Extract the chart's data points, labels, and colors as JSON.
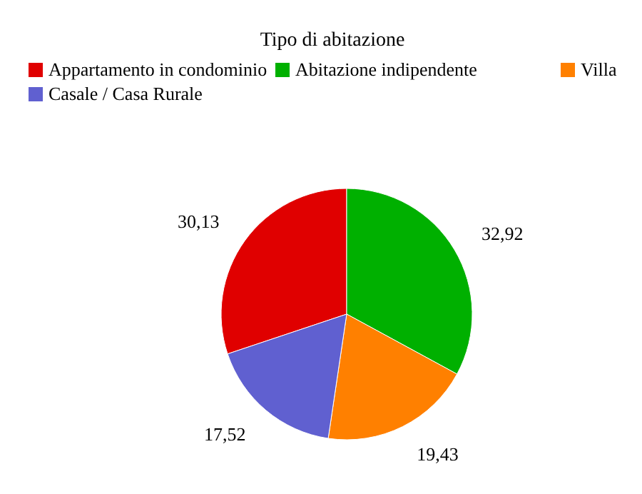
{
  "chart_data": {
    "type": "pie",
    "title": "Tipo di abitazione",
    "categories": [
      "Appartamento in condominio",
      "Abitazione indipendente",
      "Villa",
      "Casale / Casa Rurale"
    ],
    "values": [
      30.13,
      32.92,
      19.43,
      17.52
    ],
    "colors": [
      "#e00000",
      "#00b000",
      "#ff8000",
      "#6060d0"
    ],
    "value_labels": [
      "30,13",
      "32,92",
      "19,43",
      "17,52"
    ],
    "legend": "top"
  }
}
